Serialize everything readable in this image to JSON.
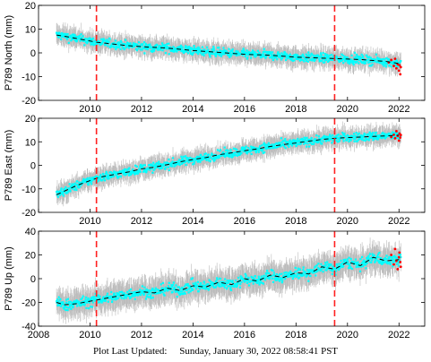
{
  "footer": {
    "label": "Plot Last Updated:",
    "date": "Sunday, January 30, 2022 08:58:41 PST"
  },
  "colors": {
    "observation": "#00ffff",
    "error_bar": "#bbbbbb",
    "model": "#000000",
    "event_line": "#ff2020",
    "recent_points": "#ff0000"
  },
  "chart_data": [
    {
      "type": "scatter",
      "ylabel": "P789 North (mm)",
      "xlim": [
        2008,
        2023
      ],
      "ylim": [
        -20,
        20
      ],
      "yticks": [
        -20,
        -10,
        0,
        10,
        20
      ],
      "xticks": [
        2008,
        2010,
        2012,
        2014,
        2016,
        2018,
        2020,
        2022
      ],
      "xticklabels": [
        "2010",
        "2012",
        "2014",
        "2016",
        "2018",
        "2020",
        "2022"
      ],
      "event_lines": [
        2010.25,
        2019.5
      ],
      "model_x": [
        2008.7,
        2009.0,
        2009.5,
        2010.0,
        2010.25,
        2010.5,
        2011.0,
        2011.5,
        2012.0,
        2012.5,
        2013.0,
        2013.5,
        2014.0,
        2014.5,
        2015.0,
        2015.5,
        2016.0,
        2016.5,
        2017.0,
        2017.5,
        2018.0,
        2018.5,
        2019.0,
        2019.5,
        2020.0,
        2020.5,
        2021.0,
        2021.5,
        2022.0
      ],
      "model_y": [
        7.5,
        7.0,
        6.0,
        5.0,
        4.5,
        4.2,
        3.6,
        3.0,
        2.6,
        2.3,
        2.0,
        1.5,
        1.0,
        0.6,
        0.2,
        -0.2,
        -0.6,
        -0.8,
        -1.0,
        -1.4,
        -1.8,
        -2.0,
        -2.2,
        -2.4,
        -2.6,
        -2.8,
        -3.2,
        -3.6,
        -4.5
      ],
      "scatter_spread": 2.0,
      "error_spread": 3.5,
      "recent_x": [
        2021.6,
        2021.7,
        2021.8,
        2021.85,
        2021.9,
        2021.95,
        2022.0,
        2022.02,
        2022.05,
        2022.07
      ],
      "recent_y": [
        -4.0,
        -3.0,
        -5.5,
        -2.5,
        -6.5,
        -4.8,
        -7.5,
        -5.2,
        -9.0,
        -6.0
      ]
    },
    {
      "type": "scatter",
      "ylabel": "P789 East (mm)",
      "xlim": [
        2008,
        2023
      ],
      "ylim": [
        -20,
        20
      ],
      "yticks": [
        -20,
        -10,
        0,
        10,
        20
      ],
      "xticks": [
        2008,
        2010,
        2012,
        2014,
        2016,
        2018,
        2020,
        2022
      ],
      "xticklabels": [
        "2010",
        "2012",
        "2014",
        "2016",
        "2018",
        "2020",
        "2022"
      ],
      "event_lines": [
        2010.25,
        2019.5
      ],
      "model_x": [
        2008.7,
        2009.0,
        2009.5,
        2010.0,
        2010.25,
        2010.5,
        2011.0,
        2011.5,
        2012.0,
        2012.5,
        2013.0,
        2013.5,
        2014.0,
        2014.5,
        2015.0,
        2015.5,
        2016.0,
        2016.5,
        2017.0,
        2017.5,
        2018.0,
        2018.5,
        2019.0,
        2019.5,
        2020.0,
        2020.5,
        2021.0,
        2021.5,
        2022.0
      ],
      "model_y": [
        -12.5,
        -11.0,
        -8.5,
        -6.5,
        -5.5,
        -4.8,
        -3.8,
        -2.8,
        -1.5,
        -0.8,
        0.3,
        1.5,
        2.5,
        3.3,
        4.5,
        5.3,
        6.2,
        7.0,
        8.0,
        8.8,
        9.5,
        10.3,
        11.0,
        11.5,
        11.8,
        12.0,
        12.3,
        12.5,
        12.8
      ],
      "scatter_spread": 2.0,
      "error_spread": 3.5,
      "recent_x": [
        2021.7,
        2021.8,
        2021.85,
        2021.9,
        2021.95,
        2022.0,
        2022.02,
        2022.05,
        2022.07
      ],
      "recent_y": [
        12.0,
        13.0,
        11.5,
        14.5,
        12.5,
        10.5,
        13.5,
        11.8,
        12.9
      ]
    },
    {
      "type": "scatter",
      "ylabel": "P789 Up (mm)",
      "xlim": [
        2008,
        2023
      ],
      "ylim": [
        -40,
        40
      ],
      "yticks": [
        -40,
        -20,
        0,
        20,
        40
      ],
      "xticks": [
        2008,
        2010,
        2012,
        2014,
        2016,
        2018,
        2020,
        2022
      ],
      "xticklabels": [
        "2008",
        "2010",
        "2012",
        "2014",
        "2016",
        "2018",
        "2020",
        "2022"
      ],
      "event_lines": [
        2010.25,
        2019.5
      ],
      "model_x": [
        2008.7,
        2009.0,
        2009.5,
        2010.0,
        2010.25,
        2010.5,
        2011.0,
        2011.5,
        2012.0,
        2012.5,
        2013.0,
        2013.5,
        2014.0,
        2014.5,
        2015.0,
        2015.5,
        2016.0,
        2016.5,
        2017.0,
        2017.5,
        2018.0,
        2018.5,
        2019.0,
        2019.5,
        2020.0,
        2020.5,
        2021.0,
        2021.5,
        2022.0
      ],
      "model_y": [
        -20,
        -22,
        -21,
        -19,
        -18,
        -17,
        -15,
        -13,
        -11,
        -12,
        -8,
        -10,
        -6,
        -7,
        -3,
        -5,
        0,
        -2,
        3,
        1,
        5,
        4,
        10,
        8,
        14,
        11,
        18,
        15,
        16
      ],
      "scatter_spread": 5.0,
      "error_spread": 10.0,
      "recent_x": [
        2021.7,
        2021.8,
        2021.85,
        2021.9,
        2021.95,
        2022.0,
        2022.02,
        2022.05,
        2022.07
      ],
      "recent_y": [
        20,
        12,
        25,
        15,
        8,
        18,
        22,
        14,
        10
      ]
    }
  ]
}
